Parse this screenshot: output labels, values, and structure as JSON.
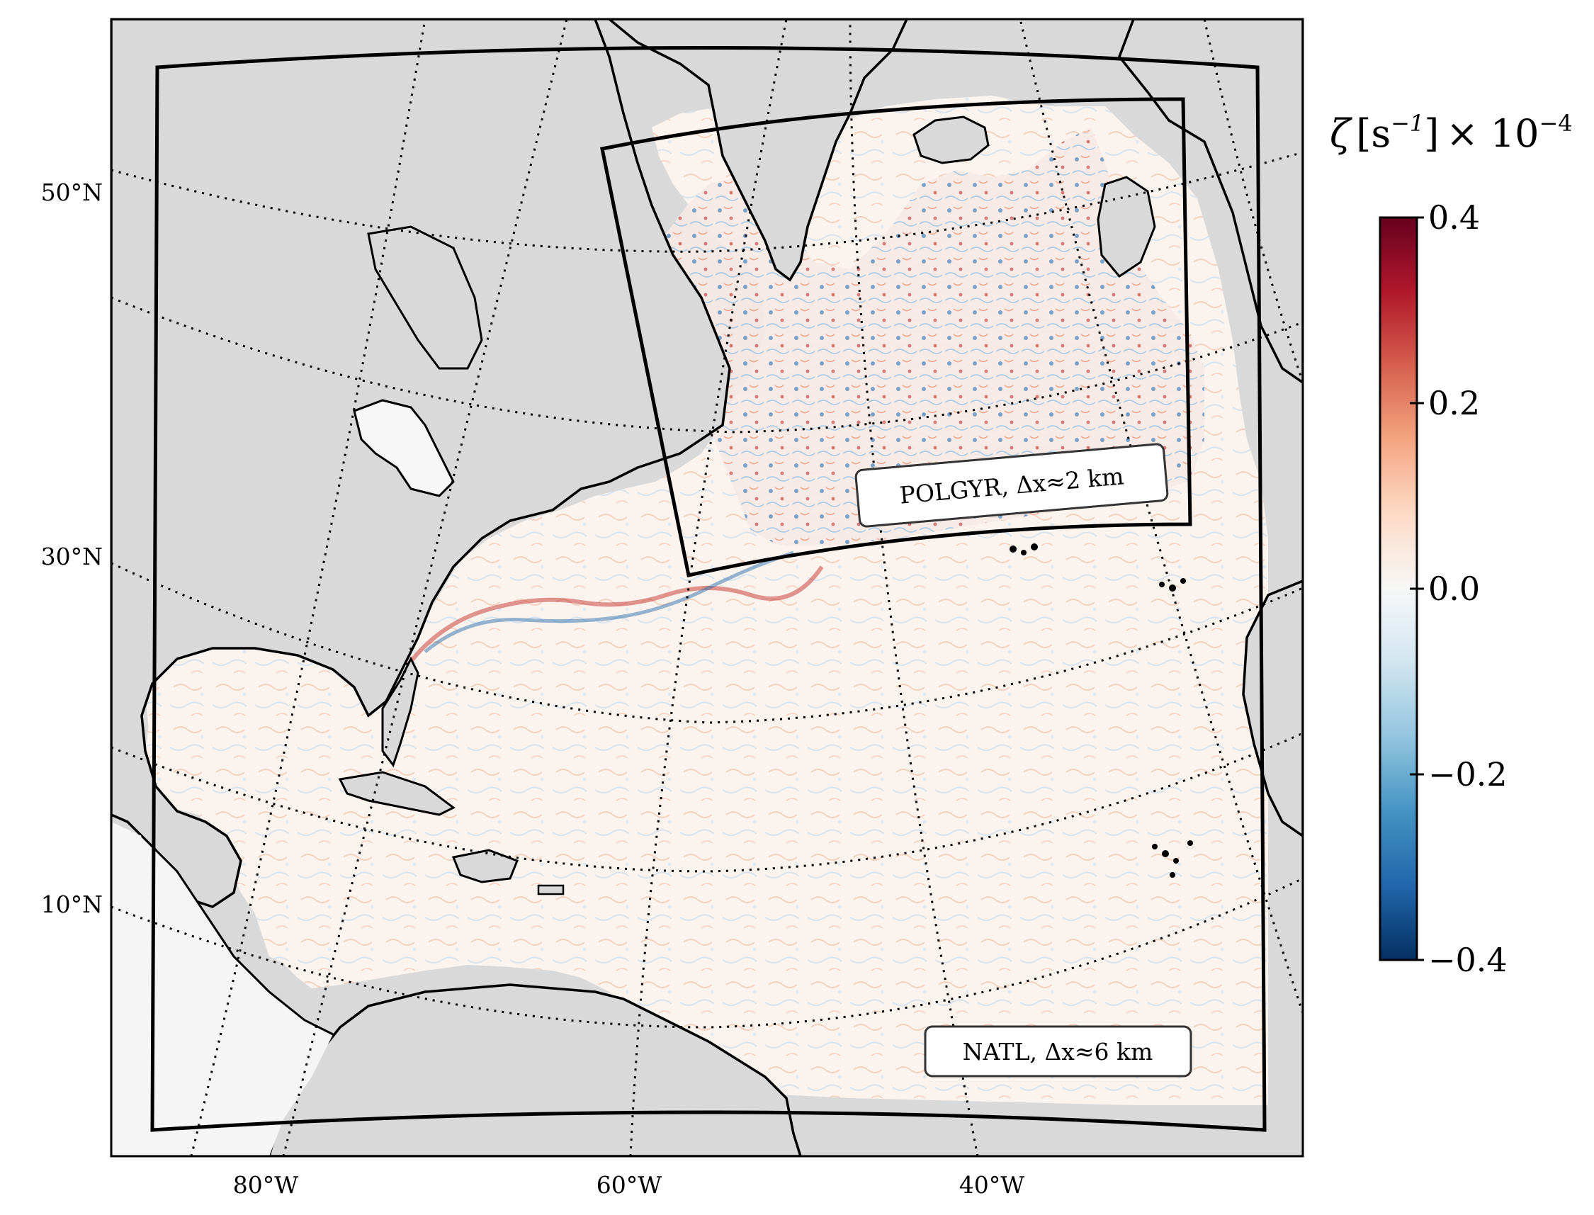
{
  "map": {
    "parallels": [
      "50°N",
      "30°N",
      "10°N"
    ],
    "meridians": [
      "80°W",
      "60°W",
      "40°W"
    ],
    "colors": {
      "land": "#d9d9d9",
      "ocean_neutral": "#f7f3f2",
      "outside_domain": "#f4f5f4",
      "coastline": "#000000"
    },
    "domains": [
      {
        "name": "POLGYR",
        "label": "POLGYR, Δx≈2 km"
      },
      {
        "name": "NATL",
        "label": "NATL, Δx≈6 km"
      }
    ]
  },
  "colorbar": {
    "title_symbol": "ζ",
    "title_unit": "[s",
    "title_unit_exp": "−1",
    "title_unit_close": "]",
    "title_scale": "× 10",
    "title_scale_exp": "−4",
    "ticks": [
      "0.4",
      "0.2",
      "0.0",
      "−0.2",
      "−0.4"
    ],
    "tick_values": [
      0.4,
      0.2,
      0.0,
      -0.2,
      -0.4
    ],
    "range": [
      -0.4,
      0.4
    ],
    "colormap": "RdBu_r",
    "stops": [
      "#053061",
      "#2166ac",
      "#4393c3",
      "#92c5de",
      "#d1e5f0",
      "#f7f7f7",
      "#fddbc7",
      "#f4a582",
      "#d6604d",
      "#b2182b",
      "#67001f"
    ]
  }
}
